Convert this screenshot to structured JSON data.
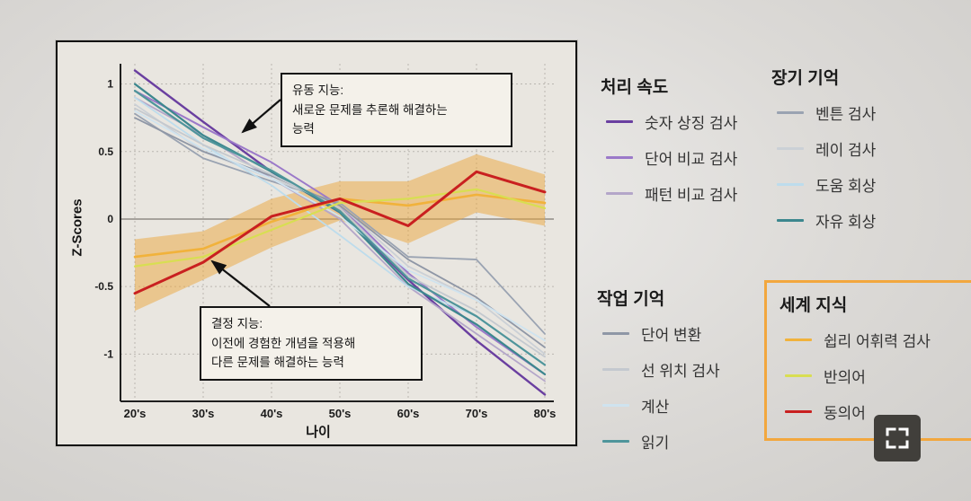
{
  "chart_data": {
    "type": "line",
    "title": "",
    "xlabel": "나이",
    "ylabel": "Z-Scores",
    "categories": [
      "20's",
      "30's",
      "40's",
      "50's",
      "60's",
      "70's",
      "80's"
    ],
    "ylim": [
      -1.35,
      1.15
    ],
    "yticks": [
      1,
      0.5,
      0,
      -0.5,
      -1
    ],
    "grid": true,
    "legend_position": "right",
    "band": {
      "group": "세계 지식",
      "color": "#eca63b",
      "opacity": 0.5,
      "pad": 0.13
    },
    "series": [
      {
        "name": "숫자 상징 검사",
        "group": "처리 속도",
        "color": "#6a3fa0",
        "width": 2.4,
        "values": [
          1.1,
          0.72,
          0.35,
          0.05,
          -0.45,
          -0.9,
          -1.3
        ]
      },
      {
        "name": "단어 비교 검사",
        "group": "처리 속도",
        "color": "#9b79c9",
        "width": 2.0,
        "values": [
          0.95,
          0.68,
          0.42,
          0.1,
          -0.4,
          -0.8,
          -1.15
        ]
      },
      {
        "name": "패턴 비교 검사",
        "group": "처리 속도",
        "color": "#b4a6c9",
        "width": 1.8,
        "values": [
          0.9,
          0.62,
          0.3,
          0.0,
          -0.5,
          -0.85,
          -1.2
        ]
      },
      {
        "name": "벤튼 검사",
        "group": "장기 기억",
        "color": "#9aa3b2",
        "width": 1.8,
        "values": [
          0.78,
          0.45,
          0.28,
          0.12,
          -0.28,
          -0.3,
          -0.85
        ]
      },
      {
        "name": "레이 검사",
        "group": "장기 기억",
        "color": "#cbd0d6",
        "width": 1.8,
        "values": [
          0.85,
          0.5,
          0.3,
          0.1,
          -0.35,
          -0.6,
          -1.0
        ]
      },
      {
        "name": "도움 회상",
        "group": "장기 기억",
        "color": "#bddcec",
        "width": 1.8,
        "values": [
          0.9,
          0.55,
          0.25,
          -0.12,
          -0.5,
          -0.72,
          -1.08
        ]
      },
      {
        "name": "자유 회상",
        "group": "장기 기억",
        "color": "#3c878e",
        "width": 2.2,
        "values": [
          1.0,
          0.62,
          0.35,
          0.05,
          -0.48,
          -0.78,
          -1.15
        ]
      },
      {
        "name": "단어 변환",
        "group": "작업 기억",
        "color": "#8f97a6",
        "width": 1.8,
        "values": [
          0.75,
          0.5,
          0.32,
          0.1,
          -0.3,
          -0.58,
          -0.95
        ]
      },
      {
        "name": "선 위치 검사",
        "group": "작업 기억",
        "color": "#c4c9cf",
        "width": 1.8,
        "values": [
          0.82,
          0.55,
          0.33,
          0.08,
          -0.42,
          -0.68,
          -1.02
        ]
      },
      {
        "name": "계산",
        "group": "작업 기억",
        "color": "#cfe3ef",
        "width": 1.8,
        "values": [
          0.8,
          0.52,
          0.3,
          0.02,
          -0.38,
          -0.6,
          -0.9
        ]
      },
      {
        "name": "읽기",
        "group": "작업 기억",
        "color": "#4f959b",
        "width": 2.2,
        "values": [
          0.95,
          0.6,
          0.36,
          0.06,
          -0.44,
          -0.72,
          -1.08
        ]
      },
      {
        "name": "쉽리 어휘력 검사",
        "group": "세계 지식",
        "color": "#f1b23b",
        "width": 2.6,
        "values": [
          -0.28,
          -0.22,
          -0.02,
          0.15,
          0.1,
          0.18,
          0.12
        ]
      },
      {
        "name": "반의어",
        "group": "세계 지식",
        "color": "#d8de52",
        "width": 2.2,
        "values": [
          -0.35,
          -0.28,
          -0.08,
          0.12,
          0.15,
          0.22,
          0.08
        ]
      },
      {
        "name": "동의어",
        "group": "세계 지식",
        "color": "#c92020",
        "width": 3.0,
        "values": [
          -0.55,
          -0.32,
          0.02,
          0.15,
          -0.05,
          0.35,
          0.2
        ]
      }
    ]
  },
  "annotations": {
    "fluid": {
      "line1": "유동 지능:",
      "line2": "새로운 문제를 추론해 해결하는",
      "line3": "능력"
    },
    "crystallized": {
      "line1": "결정 지능:",
      "line2": "이전에 경험한 개념을 적용해",
      "line3": "다른 문제를 해결하는 능력"
    }
  },
  "legend": {
    "groups": [
      {
        "title": "처리 속도",
        "highlight": false,
        "items": [
          {
            "label": "숫자 상징 검사",
            "color": "#6a3fa0"
          },
          {
            "label": "단어 비교 검사",
            "color": "#9b79c9"
          },
          {
            "label": "패턴 비교 검사",
            "color": "#b4a6c9"
          }
        ]
      },
      {
        "title": "장기 기억",
        "highlight": false,
        "items": [
          {
            "label": "벤튼 검사",
            "color": "#9aa3b2"
          },
          {
            "label": "레이 검사",
            "color": "#cbd0d6"
          },
          {
            "label": "도움 회상",
            "color": "#bddcec"
          },
          {
            "label": "자유 회상",
            "color": "#3c878e"
          }
        ]
      },
      {
        "title": "작업 기억",
        "highlight": false,
        "items": [
          {
            "label": "단어 변환",
            "color": "#8f97a6"
          },
          {
            "label": "선 위치 검사",
            "color": "#c4c9cf"
          },
          {
            "label": "계산",
            "color": "#cfe3ef"
          },
          {
            "label": "읽기",
            "color": "#4f959b"
          }
        ]
      },
      {
        "title": "세계 지식",
        "highlight": true,
        "highlight_color": "#f2a73e",
        "items": [
          {
            "label": "쉽리 어휘력 검사",
            "color": "#f1b23b"
          },
          {
            "label": "반의어",
            "color": "#d8de52"
          },
          {
            "label": "동의어",
            "color": "#c92020"
          }
        ]
      }
    ]
  },
  "icons": {
    "fullscreen": "corner-brackets"
  }
}
